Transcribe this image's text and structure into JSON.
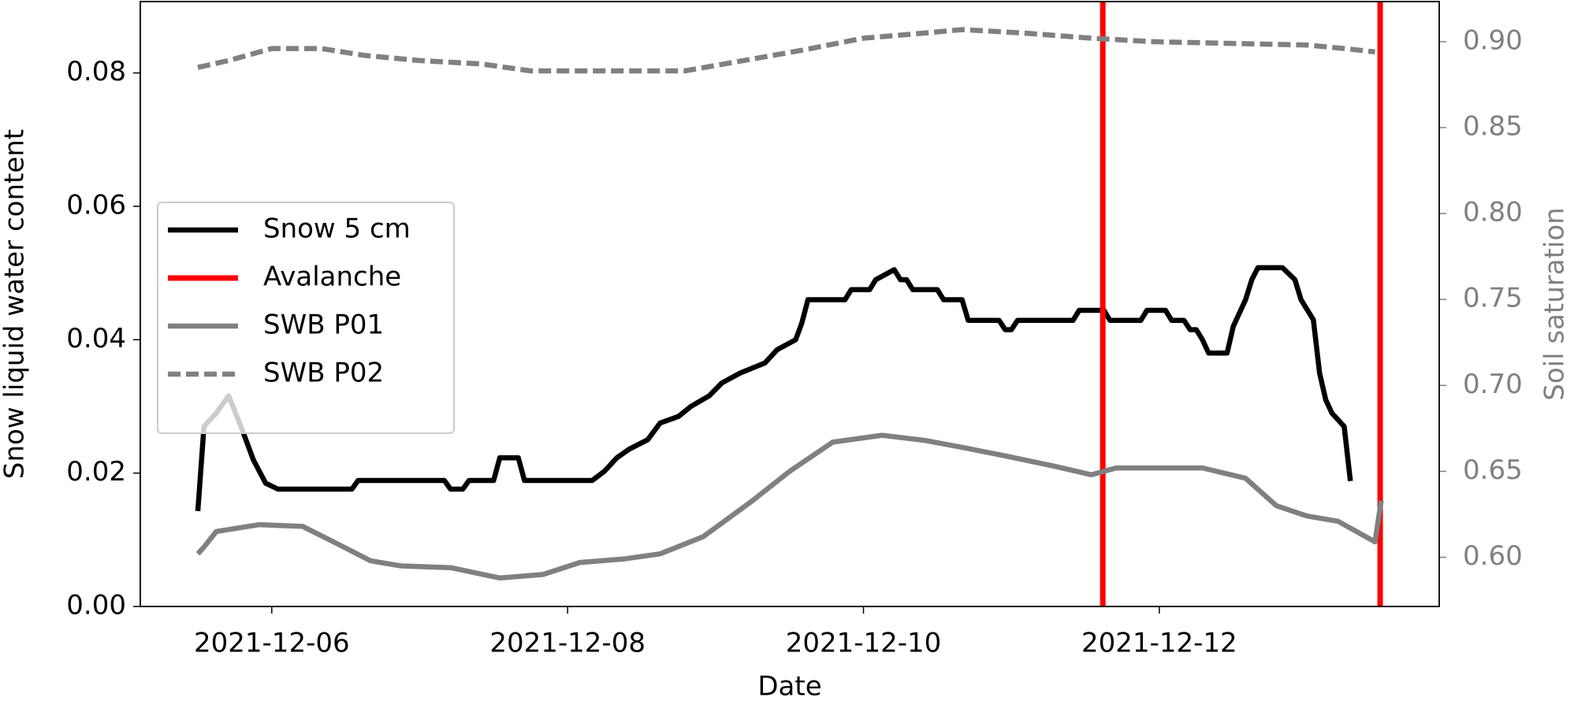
{
  "chart_data": {
    "type": "line",
    "x_label": "Date",
    "y_label": "Snow liquid water content",
    "y2_label": "Soil saturation",
    "xlim": [
      "2021-12-05T02:40",
      "2021-12-13T21:25"
    ],
    "xticks": [
      "2021-12-06",
      "2021-12-08",
      "2021-12-10",
      "2021-12-12"
    ],
    "ylim": [
      0,
      0.0907
    ],
    "yticks": [
      {
        "value": 0,
        "label": "0.00"
      },
      0.02,
      0.04,
      0.06,
      0.08
    ],
    "y2lim": [
      0.5714,
      0.9233
    ],
    "y2ticks": [
      {
        "value": 0.6,
        "label": "0.60"
      },
      0.65,
      {
        "value": 0.7,
        "label": "0.70"
      },
      0.75,
      {
        "value": 0.8,
        "label": "0.80"
      },
      0.85,
      {
        "value": 0.9,
        "label": "0.90"
      }
    ],
    "y2_color": "#808080",
    "legend": "center left",
    "series": [
      {
        "name": "Snow 5 cm",
        "color": "#000000",
        "style": "solid",
        "x": [
          "2021-12-05T12:00",
          "2021-12-05T13:00",
          "2021-12-05T15:00",
          "2021-12-05T17:00",
          "2021-12-05T19:00",
          "2021-12-05T21:00",
          "2021-12-05T23:00",
          "2021-12-06T01:00",
          "2021-12-06T13:00",
          "2021-12-06T14:00",
          "2021-12-07T04:00",
          "2021-12-07T05:00",
          "2021-12-07T07:00",
          "2021-12-07T08:00",
          "2021-12-07T12:00",
          "2021-12-07T13:00",
          "2021-12-07T16:00",
          "2021-12-07T17:00",
          "2021-12-08T04:00",
          "2021-12-08T06:00",
          "2021-12-08T08:00",
          "2021-12-08T10:00",
          "2021-12-08T13:00",
          "2021-12-08T15:00",
          "2021-12-08T18:00",
          "2021-12-08T20:00",
          "2021-12-08T23:00",
          "2021-12-09T01:00",
          "2021-12-09T04:00",
          "2021-12-09T08:00",
          "2021-12-09T10:00",
          "2021-12-09T13:00",
          "2021-12-09T14:00",
          "2021-12-09T15:00",
          "2021-12-09T21:00",
          "2021-12-09T22:00",
          "2021-12-10T01:00",
          "2021-12-10T02:00",
          "2021-12-10T05:00",
          "2021-12-10T06:00",
          "2021-12-10T07:00",
          "2021-12-10T08:00",
          "2021-12-10T12:00",
          "2021-12-10T13:00",
          "2021-12-10T16:00",
          "2021-12-10T17:00",
          "2021-12-10T22:00",
          "2021-12-10T23:00",
          "2021-12-11T00:00",
          "2021-12-11T01:00",
          "2021-12-11T10:00",
          "2021-12-11T11:00",
          "2021-12-11T15:00",
          "2021-12-11T16:00",
          "2021-12-11T21:00",
          "2021-12-11T22:00",
          "2021-12-12T01:00",
          "2021-12-12T02:00",
          "2021-12-12T04:00",
          "2021-12-12T05:00",
          "2021-12-12T06:00",
          "2021-12-12T07:00",
          "2021-12-12T08:00",
          "2021-12-12T11:00",
          "2021-12-12T12:00",
          "2021-12-12T14:00",
          "2021-12-12T15:00",
          "2021-12-12T16:00",
          "2021-12-12T20:00",
          "2021-12-12T22:00",
          "2021-12-12T23:00",
          "2021-12-13T01:00",
          "2021-12-13T02:00",
          "2021-12-13T03:00",
          "2021-12-13T04:00",
          "2021-12-13T06:00",
          "2021-12-13T07:00"
        ],
        "values": [
          0.0143,
          0.027,
          0.029,
          0.0316,
          0.027,
          0.022,
          0.0185,
          0.0176,
          0.0176,
          0.0189,
          0.0189,
          0.0176,
          0.0176,
          0.0189,
          0.0189,
          0.0223,
          0.0223,
          0.0189,
          0.0189,
          0.0203,
          0.0223,
          0.0236,
          0.025,
          0.0275,
          0.0285,
          0.03,
          0.0316,
          0.0335,
          0.035,
          0.0365,
          0.0385,
          0.04,
          0.0425,
          0.046,
          0.046,
          0.0475,
          0.0475,
          0.049,
          0.0505,
          0.049,
          0.049,
          0.0475,
          0.0475,
          0.046,
          0.046,
          0.0429,
          0.0429,
          0.0415,
          0.0415,
          0.0429,
          0.0429,
          0.0444,
          0.0444,
          0.0429,
          0.0429,
          0.0444,
          0.0444,
          0.0429,
          0.0429,
          0.0415,
          0.0415,
          0.04,
          0.038,
          0.038,
          0.042,
          0.046,
          0.049,
          0.0508,
          0.0508,
          0.049,
          0.046,
          0.043,
          0.035,
          0.031,
          0.029,
          0.027,
          0.0188
        ]
      },
      {
        "name": "Avalanche",
        "color": "#ff0000",
        "style": "vline",
        "x": [
          "2021-12-11T14:50",
          "2021-12-13T11:50"
        ]
      },
      {
        "name": "SWB P01",
        "color": "#808080",
        "style": "solid",
        "axis": "y2",
        "x": [
          "2021-12-05T12:00",
          "2021-12-05T13:00",
          "2021-12-05T15:00",
          "2021-12-05T22:00",
          "2021-12-06T05:00",
          "2021-12-06T10:00",
          "2021-12-06T16:00",
          "2021-12-06T21:00",
          "2021-12-07T05:00",
          "2021-12-07T13:00",
          "2021-12-07T20:00",
          "2021-12-08T02:00",
          "2021-12-08T09:00",
          "2021-12-08T15:00",
          "2021-12-08T22:00",
          "2021-12-09T06:00",
          "2021-12-09T12:00",
          "2021-12-09T19:00",
          "2021-12-10T03:00",
          "2021-12-10T10:00",
          "2021-12-10T16:00",
          "2021-12-10T23:00",
          "2021-12-11T07:00",
          "2021-12-11T13:00",
          "2021-12-11T17:00",
          "2021-12-11T23:00",
          "2021-12-12T07:00",
          "2021-12-12T14:00",
          "2021-12-12T19:00",
          "2021-12-13T00:00",
          "2021-12-13T05:00",
          "2021-12-13T11:00",
          "2021-12-13T12:00"
        ],
        "values": [
          0.602,
          0.606,
          0.615,
          0.619,
          0.618,
          0.609,
          0.598,
          0.595,
          0.594,
          0.588,
          0.59,
          0.597,
          0.599,
          0.602,
          0.612,
          0.633,
          0.65,
          0.667,
          0.671,
          0.668,
          0.664,
          0.659,
          0.653,
          0.648,
          0.652,
          0.652,
          0.652,
          0.646,
          0.63,
          0.624,
          0.621,
          0.609,
          0.633
        ]
      },
      {
        "name": "SWB P02",
        "color": "#808080",
        "style": "dashed",
        "axis": "y2",
        "x": [
          "2021-12-05T12:00",
          "2021-12-05T17:00",
          "2021-12-06T00:00",
          "2021-12-06T08:00",
          "2021-12-06T15:00",
          "2021-12-07T00:00",
          "2021-12-07T10:00",
          "2021-12-07T18:00",
          "2021-12-08T06:00",
          "2021-12-08T19:00",
          "2021-12-09T03:00",
          "2021-12-09T14:00",
          "2021-12-10T00:00",
          "2021-12-10T10:00",
          "2021-12-10T16:00",
          "2021-12-11T02:00",
          "2021-12-11T13:00",
          "2021-12-11T23:00",
          "2021-12-12T11:00",
          "2021-12-13T00:00",
          "2021-12-13T06:00",
          "2021-12-13T11:00"
        ],
        "values": [
          0.885,
          0.889,
          0.896,
          0.896,
          0.892,
          0.889,
          0.887,
          0.883,
          0.883,
          0.883,
          0.888,
          0.895,
          0.902,
          0.905,
          0.907,
          0.905,
          0.902,
          0.9,
          0.899,
          0.898,
          0.896,
          0.894
        ]
      }
    ]
  }
}
